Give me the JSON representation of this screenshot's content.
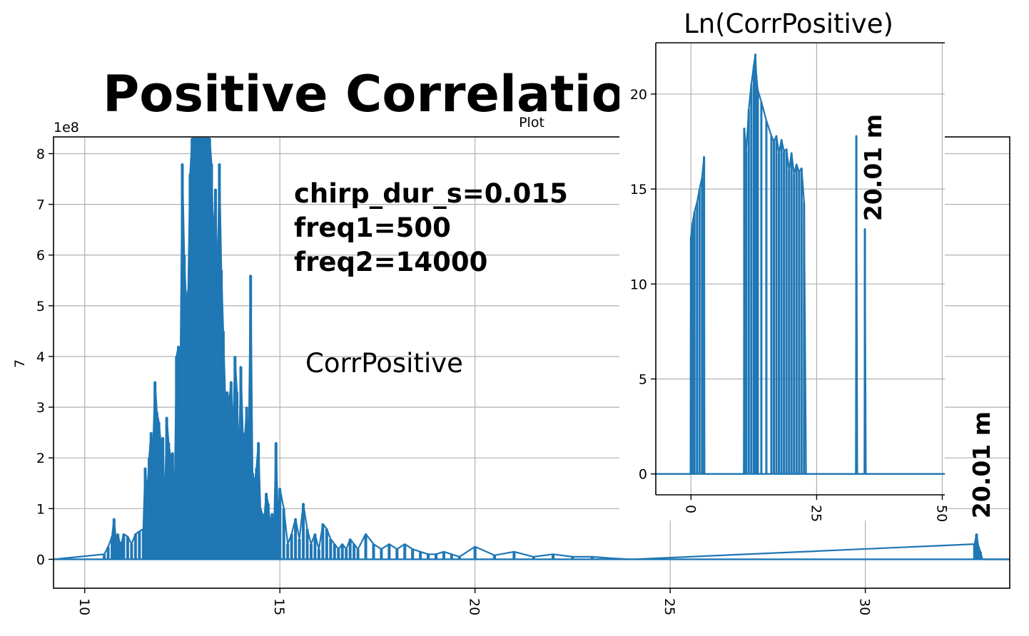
{
  "figure": {
    "suptitle": "Positive Correlation",
    "annotations": [
      "chirp_dur_s=0.015",
      "freq1=500",
      "freq2=14000"
    ],
    "series_label": "CorrPositive",
    "distance_labels": [
      "20.01 m",
      "20.01 m"
    ]
  },
  "colors": {
    "line": "#1f77b4",
    "grid": "#b0b0b0",
    "axes": "#000000"
  },
  "chart_data": [
    {
      "type": "line",
      "title": "Plot",
      "xlabel": "",
      "ylabel": "7",
      "y_offset_text": "1e8",
      "xlim": [
        9.2,
        33.7
      ],
      "ylim": [
        -0.57,
        8.33
      ],
      "xticks": [
        10,
        15,
        20,
        25,
        30
      ],
      "xtick_labels": [
        "10",
        "15",
        "20",
        "25",
        "30"
      ],
      "yticks": [
        0,
        1,
        2,
        3,
        4,
        5,
        6,
        7,
        8
      ],
      "ytick_labels": [
        "0",
        "1",
        "2",
        "3",
        "4",
        "5",
        "6",
        "7",
        "8"
      ],
      "grid": true,
      "series": [
        {
          "x": [
            9.2,
            10.5,
            10.6,
            10.7,
            10.75,
            10.8,
            10.85,
            10.9,
            10.95,
            11.0,
            11.1,
            11.2,
            11.3,
            11.4,
            11.5,
            11.55,
            11.6,
            11.65,
            11.7,
            11.75,
            11.8,
            11.85,
            11.9,
            11.95,
            12.0,
            12.05,
            12.1,
            12.15,
            12.2,
            12.25,
            12.3,
            12.35,
            12.4,
            12.45,
            12.5,
            12.55,
            12.6,
            12.65,
            12.7,
            12.75,
            12.8,
            12.85,
            12.9,
            12.95,
            13.0,
            13.05,
            13.1,
            13.15,
            13.2,
            13.25,
            13.3,
            13.35,
            13.4,
            13.45,
            13.5,
            13.55,
            13.6,
            13.65,
            13.7,
            13.75,
            13.8,
            13.85,
            13.9,
            13.95,
            14.0,
            14.05,
            14.1,
            14.15,
            14.2,
            14.25,
            14.3,
            14.35,
            14.4,
            14.45,
            14.5,
            14.55,
            14.6,
            14.65,
            14.7,
            14.75,
            14.8,
            14.85,
            14.9,
            14.95,
            15.0,
            15.1,
            15.2,
            15.3,
            15.4,
            15.5,
            15.6,
            15.7,
            15.8,
            15.9,
            16.0,
            16.1,
            16.2,
            16.3,
            16.4,
            16.5,
            16.6,
            16.7,
            16.8,
            16.9,
            17.0,
            17.2,
            17.4,
            17.6,
            17.8,
            18.0,
            18.2,
            18.4,
            18.6,
            18.8,
            19.0,
            19.2,
            19.4,
            19.6,
            20.0,
            20.5,
            21.0,
            21.5,
            22.0,
            22.5,
            23.0,
            23.5,
            24.0,
            32.8,
            32.85,
            32.9,
            32.95,
            33.0,
            33.7
          ],
          "y": [
            0,
            0.1,
            0.25,
            0.45,
            0.8,
            0.4,
            0.5,
            0.3,
            0.35,
            0.5,
            0.45,
            0.3,
            0.5,
            0.55,
            0.6,
            1.8,
            1.3,
            2.0,
            2.5,
            2.2,
            3.5,
            2.9,
            2.7,
            2.3,
            2.4,
            1.0,
            2.8,
            2.3,
            2.0,
            2.1,
            1.1,
            4.0,
            4.2,
            3.7,
            7.8,
            6.0,
            5.0,
            5.3,
            7.6,
            8.3,
            8.3,
            8.3,
            8.3,
            8.3,
            8.3,
            8.3,
            8.3,
            8.3,
            8.3,
            7.8,
            6.2,
            7.3,
            5.3,
            7.8,
            5.7,
            4.5,
            3.2,
            3.3,
            3.1,
            3.5,
            2.5,
            4.0,
            3.3,
            1.9,
            3.8,
            2.5,
            2.4,
            3.0,
            2.2,
            5.6,
            1.7,
            1.5,
            1.8,
            2.3,
            1.0,
            0.9,
            0.8,
            1.3,
            1.1,
            0.7,
            0.9,
            0.6,
            2.3,
            0.8,
            1.4,
            1.0,
            0.3,
            0.5,
            0.8,
            0.4,
            1.1,
            0.6,
            0.3,
            0.5,
            0.2,
            0.7,
            0.6,
            0.4,
            0.3,
            0.2,
            0.3,
            0.2,
            0.4,
            0.3,
            0.2,
            0.5,
            0.3,
            0.2,
            0.3,
            0.2,
            0.3,
            0.2,
            0.15,
            0.1,
            0.1,
            0.15,
            0.1,
            0.05,
            0.25,
            0.08,
            0.15,
            0.05,
            0.1,
            0.05,
            0.05,
            0.02,
            0,
            0.3,
            0.5,
            0.25,
            0.15,
            0,
            0
          ]
        }
      ]
    },
    {
      "type": "line",
      "title": "Ln(CorrPositive)",
      "xlabel": "",
      "ylabel": "",
      "xlim": [
        -7,
        50.5
      ],
      "ylim": [
        -1.1,
        22.7
      ],
      "xticks": [
        0,
        25,
        50
      ],
      "xtick_labels": [
        "0",
        "25",
        "50"
      ],
      "yticks": [
        0,
        5,
        10,
        15,
        20
      ],
      "ytick_labels": [
        "0",
        "5",
        "10",
        "15",
        "20"
      ],
      "grid": true,
      "series": [
        {
          "x": [
            -7,
            -0.1,
            0,
            0.3,
            0.7,
            1.2,
            1.7,
            2.2,
            2.6,
            2.7,
            10.5,
            10.6,
            11.0,
            11.5,
            12.0,
            12.5,
            12.8,
            13.0,
            13.3,
            14.0,
            15.0,
            16.0,
            16.5,
            17.0,
            17.5,
            18.0,
            18.5,
            19.0,
            19.5,
            20.0,
            20.5,
            21.0,
            21.5,
            22.0,
            22.5,
            22.9,
            23.0,
            32.8,
            32.9,
            33.1,
            34.5,
            34.6,
            34.8,
            50.5
          ],
          "y": [
            0,
            0,
            12.5,
            13.2,
            13.8,
            14.3,
            15.0,
            15.6,
            16.7,
            0,
            0,
            18.2,
            17.0,
            19.2,
            20.5,
            21.5,
            22.1,
            21.0,
            20.2,
            19.6,
            18.6,
            17.8,
            17.5,
            17.8,
            16.9,
            17.6,
            17.0,
            17.1,
            16.0,
            16.9,
            15.8,
            16.3,
            15.9,
            16.1,
            14.3,
            0,
            0,
            0,
            17.8,
            0,
            0,
            12.9,
            0,
            0
          ]
        }
      ]
    }
  ]
}
